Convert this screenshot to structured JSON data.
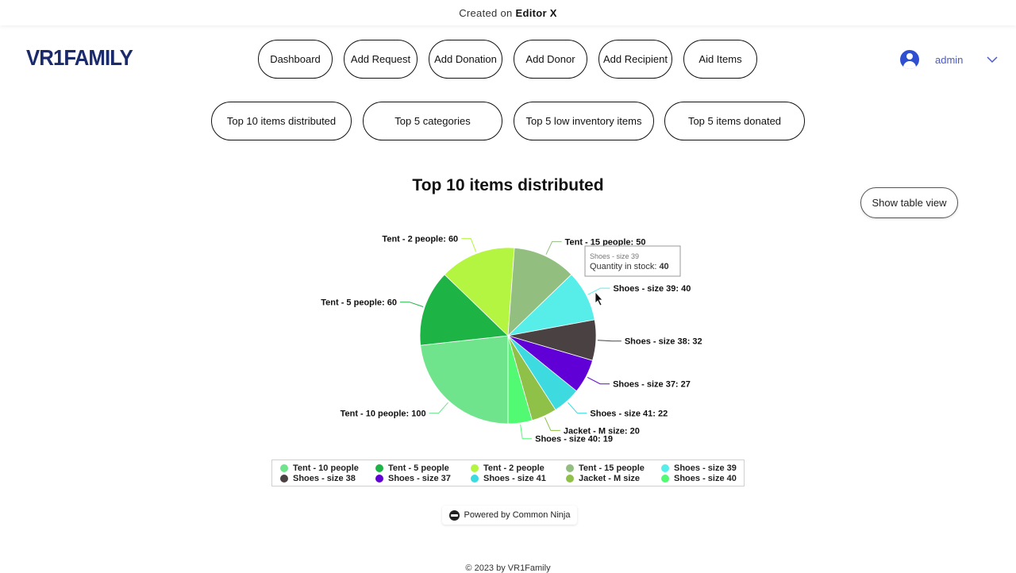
{
  "topbar": {
    "created_text": "Created on",
    "brand": "Editor X"
  },
  "logo": {
    "text": "VR1FAMILY"
  },
  "nav": [
    {
      "label": "Dashboard"
    },
    {
      "label": "Add Request"
    },
    {
      "label": "Add Donation"
    },
    {
      "label": "Add Donor"
    },
    {
      "label": "Add Recipient"
    },
    {
      "label": "Aid Items"
    }
  ],
  "user": {
    "name": "admin"
  },
  "tabs": [
    {
      "label": "Top 10 items distributed"
    },
    {
      "label": "Top 5 categories"
    },
    {
      "label": "Top 5 low inventory items"
    },
    {
      "label": "Top 5 items donated"
    }
  ],
  "table_view_button": "Show table view",
  "powered_by": "Powered by Common Ninja",
  "footer": "© 2023 by VR1Family",
  "chart_data": {
    "type": "pie",
    "title": "Top 10 items distributed",
    "categories": [
      "Tent - 10 people",
      "Tent - 5 people",
      "Tent - 2 people",
      "Tent - 15 people",
      "Shoes - size 39",
      "Shoes - size 38",
      "Shoes - size 37",
      "Shoes - size 41",
      "Jacket - M size",
      "Shoes - size 40"
    ],
    "values": [
      100,
      60,
      60,
      50,
      40,
      32,
      27,
      22,
      20,
      19
    ],
    "colors": [
      "#6fe48c",
      "#1db345",
      "#b4f542",
      "#92bf80",
      "#57eeea",
      "#4a4242",
      "#6000d6",
      "#3ddbe0",
      "#8fc048",
      "#52fa74"
    ],
    "legend_position": "bottom",
    "tooltip": {
      "item": "Shoes - size 39",
      "label": "Quantity in stock:",
      "value": "40"
    }
  }
}
